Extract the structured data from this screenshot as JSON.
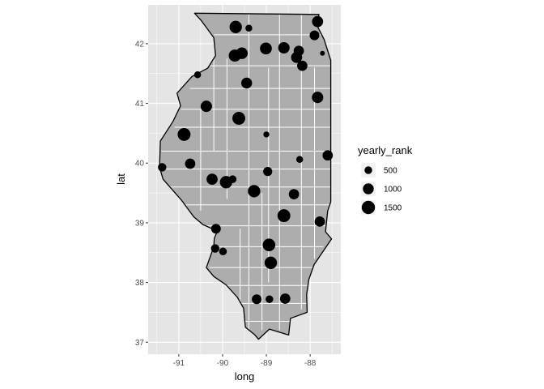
{
  "chart_data": {
    "type": "scatter",
    "subtype": "map-bubble",
    "xlabel": "long",
    "ylabel": "lat",
    "xlim": [
      -91.7,
      -87.3
    ],
    "ylim": [
      36.8,
      42.65
    ],
    "x_ticks": [
      -91,
      -90,
      -89,
      -88
    ],
    "x_tick_labels": [
      "-91",
      "-90",
      "-89",
      "-88"
    ],
    "y_ticks": [
      37,
      38,
      39,
      40,
      41,
      42
    ],
    "y_tick_labels": [
      "37",
      "38",
      "39",
      "40",
      "41",
      "42"
    ],
    "grid": true,
    "legend": {
      "title": "yearly_rank",
      "position": "right",
      "entries": [
        {
          "label": "500",
          "value": 500
        },
        {
          "label": "1000",
          "value": 1000
        },
        {
          "label": "1500",
          "value": 1500
        }
      ]
    },
    "size_range": [
      0,
      1800
    ],
    "colors": {
      "panel": "#e5e5e5",
      "grid": "#ffffff",
      "state_fill": "#adadad",
      "county_line": "#ffffff",
      "state_outline": "#000000",
      "points": "#000000"
    },
    "state_outline": [
      [
        -90.64,
        42.51
      ],
      [
        -87.8,
        42.49
      ],
      [
        -87.84,
        42.3
      ],
      [
        -87.68,
        42.07
      ],
      [
        -87.53,
        41.72
      ],
      [
        -87.53,
        39.35
      ],
      [
        -87.6,
        39.2
      ],
      [
        -87.65,
        38.85
      ],
      [
        -87.51,
        38.73
      ],
      [
        -87.91,
        38.3
      ],
      [
        -88.03,
        38.05
      ],
      [
        -88.08,
        37.8
      ],
      [
        -88.07,
        37.5
      ],
      [
        -88.45,
        37.4
      ],
      [
        -88.49,
        37.12
      ],
      [
        -88.93,
        37.22
      ],
      [
        -89.18,
        37.05
      ],
      [
        -89.26,
        37.12
      ],
      [
        -89.48,
        37.25
      ],
      [
        -89.52,
        37.57
      ],
      [
        -89.66,
        37.75
      ],
      [
        -89.92,
        37.96
      ],
      [
        -90.2,
        38.1
      ],
      [
        -90.37,
        38.25
      ],
      [
        -90.2,
        38.6
      ],
      [
        -90.19,
        38.74
      ],
      [
        -90.12,
        38.86
      ],
      [
        -90.45,
        38.97
      ],
      [
        -90.66,
        39.1
      ],
      [
        -90.94,
        39.38
      ],
      [
        -91.36,
        39.73
      ],
      [
        -91.44,
        39.93
      ],
      [
        -91.42,
        40.37
      ],
      [
        -91.13,
        40.7
      ],
      [
        -90.96,
        40.96
      ],
      [
        -91.04,
        41.17
      ],
      [
        -90.7,
        41.45
      ],
      [
        -90.34,
        41.59
      ],
      [
        -90.16,
        41.8
      ],
      [
        -90.2,
        42.1
      ],
      [
        -90.49,
        42.39
      ]
    ],
    "county_lines": [
      [
        [
          -89.4,
          42.5
        ],
        [
          -89.4,
          36.95
        ]
      ],
      [
        [
          -88.7,
          42.5
        ],
        [
          -88.7,
          37.2
        ]
      ],
      [
        [
          -88.2,
          42.49
        ],
        [
          -88.2,
          37.55
        ]
      ],
      [
        [
          -90.2,
          42.0
        ],
        [
          -90.2,
          40.2
        ]
      ],
      [
        [
          -89.9,
          41.75
        ],
        [
          -89.9,
          39.4
        ]
      ],
      [
        [
          -90.5,
          40.9
        ],
        [
          -90.5,
          39.2
        ]
      ],
      [
        [
          -88.95,
          41.6
        ],
        [
          -88.95,
          38.0
        ]
      ],
      [
        [
          -87.9,
          41.6
        ],
        [
          -87.9,
          38.4
        ]
      ],
      [
        [
          -89.1,
          39.5
        ],
        [
          -89.1,
          37.2
        ]
      ],
      [
        [
          -89.6,
          38.9
        ],
        [
          -89.6,
          37.5
        ]
      ],
      [
        [
          -90.2,
          42.15
        ],
        [
          -87.75,
          42.15
        ]
      ],
      [
        [
          -90.35,
          41.63
        ],
        [
          -87.53,
          41.63
        ]
      ],
      [
        [
          -90.75,
          41.25
        ],
        [
          -87.53,
          41.25
        ]
      ],
      [
        [
          -90.95,
          40.9
        ],
        [
          -87.53,
          40.9
        ]
      ],
      [
        [
          -91.1,
          40.6
        ],
        [
          -87.53,
          40.6
        ]
      ],
      [
        [
          -91.4,
          40.2
        ],
        [
          -87.53,
          40.2
        ]
      ],
      [
        [
          -91.4,
          39.9
        ],
        [
          -87.53,
          39.9
        ]
      ],
      [
        [
          -91.2,
          39.6
        ],
        [
          -87.53,
          39.6
        ]
      ],
      [
        [
          -90.9,
          39.3
        ],
        [
          -87.53,
          39.3
        ]
      ],
      [
        [
          -90.5,
          38.95
        ],
        [
          -87.62,
          38.95
        ]
      ],
      [
        [
          -90.2,
          38.6
        ],
        [
          -87.7,
          38.6
        ]
      ],
      [
        [
          -90.3,
          38.25
        ],
        [
          -87.95,
          38.25
        ]
      ],
      [
        [
          -90.0,
          37.95
        ],
        [
          -88.03,
          37.95
        ]
      ],
      [
        [
          -89.7,
          37.65
        ],
        [
          -88.07,
          37.65
        ]
      ],
      [
        [
          -89.5,
          37.35
        ],
        [
          -88.3,
          37.35
        ]
      ]
    ],
    "points": [
      {
        "long": -89.7,
        "lat": 42.28,
        "yearly_rank": 1300
      },
      {
        "long": -89.4,
        "lat": 42.26,
        "yearly_rank": 400
      },
      {
        "long": -87.83,
        "lat": 42.37,
        "yearly_rank": 1050
      },
      {
        "long": -87.9,
        "lat": 42.14,
        "yearly_rank": 800
      },
      {
        "long": -88.26,
        "lat": 41.88,
        "yearly_rank": 900
      },
      {
        "long": -88.6,
        "lat": 41.93,
        "yearly_rank": 1100
      },
      {
        "long": -89.01,
        "lat": 41.92,
        "yearly_rank": 1200
      },
      {
        "long": -89.56,
        "lat": 41.84,
        "yearly_rank": 1150
      },
      {
        "long": -89.72,
        "lat": 41.8,
        "yearly_rank": 1250
      },
      {
        "long": -88.31,
        "lat": 41.77,
        "yearly_rank": 1050
      },
      {
        "long": -88.18,
        "lat": 41.63,
        "yearly_rank": 900
      },
      {
        "long": -87.72,
        "lat": 41.84,
        "yearly_rank": 200
      },
      {
        "long": -90.57,
        "lat": 41.48,
        "yearly_rank": 400
      },
      {
        "long": -89.45,
        "lat": 41.34,
        "yearly_rank": 1000
      },
      {
        "long": -87.83,
        "lat": 41.1,
        "yearly_rank": 1100
      },
      {
        "long": -90.37,
        "lat": 40.95,
        "yearly_rank": 1100
      },
      {
        "long": -89.63,
        "lat": 40.75,
        "yearly_rank": 1400
      },
      {
        "long": -89.0,
        "lat": 40.48,
        "yearly_rank": 300
      },
      {
        "long": -90.88,
        "lat": 40.48,
        "yearly_rank": 1400
      },
      {
        "long": -87.6,
        "lat": 40.13,
        "yearly_rank": 900
      },
      {
        "long": -88.24,
        "lat": 40.06,
        "yearly_rank": 400
      },
      {
        "long": -91.38,
        "lat": 39.93,
        "yearly_rank": 600
      },
      {
        "long": -90.74,
        "lat": 39.99,
        "yearly_rank": 900
      },
      {
        "long": -88.97,
        "lat": 39.86,
        "yearly_rank": 700
      },
      {
        "long": -90.24,
        "lat": 39.73,
        "yearly_rank": 1050
      },
      {
        "long": -89.77,
        "lat": 39.73,
        "yearly_rank": 500
      },
      {
        "long": -89.92,
        "lat": 39.68,
        "yearly_rank": 1300
      },
      {
        "long": -89.28,
        "lat": 39.53,
        "yearly_rank": 1300
      },
      {
        "long": -88.37,
        "lat": 39.48,
        "yearly_rank": 900
      },
      {
        "long": -88.6,
        "lat": 39.12,
        "yearly_rank": 1400
      },
      {
        "long": -87.78,
        "lat": 39.02,
        "yearly_rank": 900
      },
      {
        "long": -90.15,
        "lat": 38.9,
        "yearly_rank": 800
      },
      {
        "long": -90.17,
        "lat": 38.57,
        "yearly_rank": 600
      },
      {
        "long": -89.99,
        "lat": 38.52,
        "yearly_rank": 500
      },
      {
        "long": -88.94,
        "lat": 38.63,
        "yearly_rank": 1350
      },
      {
        "long": -88.9,
        "lat": 38.33,
        "yearly_rank": 1300
      },
      {
        "long": -89.22,
        "lat": 37.72,
        "yearly_rank": 800
      },
      {
        "long": -88.93,
        "lat": 37.72,
        "yearly_rank": 500
      },
      {
        "long": -88.57,
        "lat": 37.73,
        "yearly_rank": 900
      }
    ]
  }
}
